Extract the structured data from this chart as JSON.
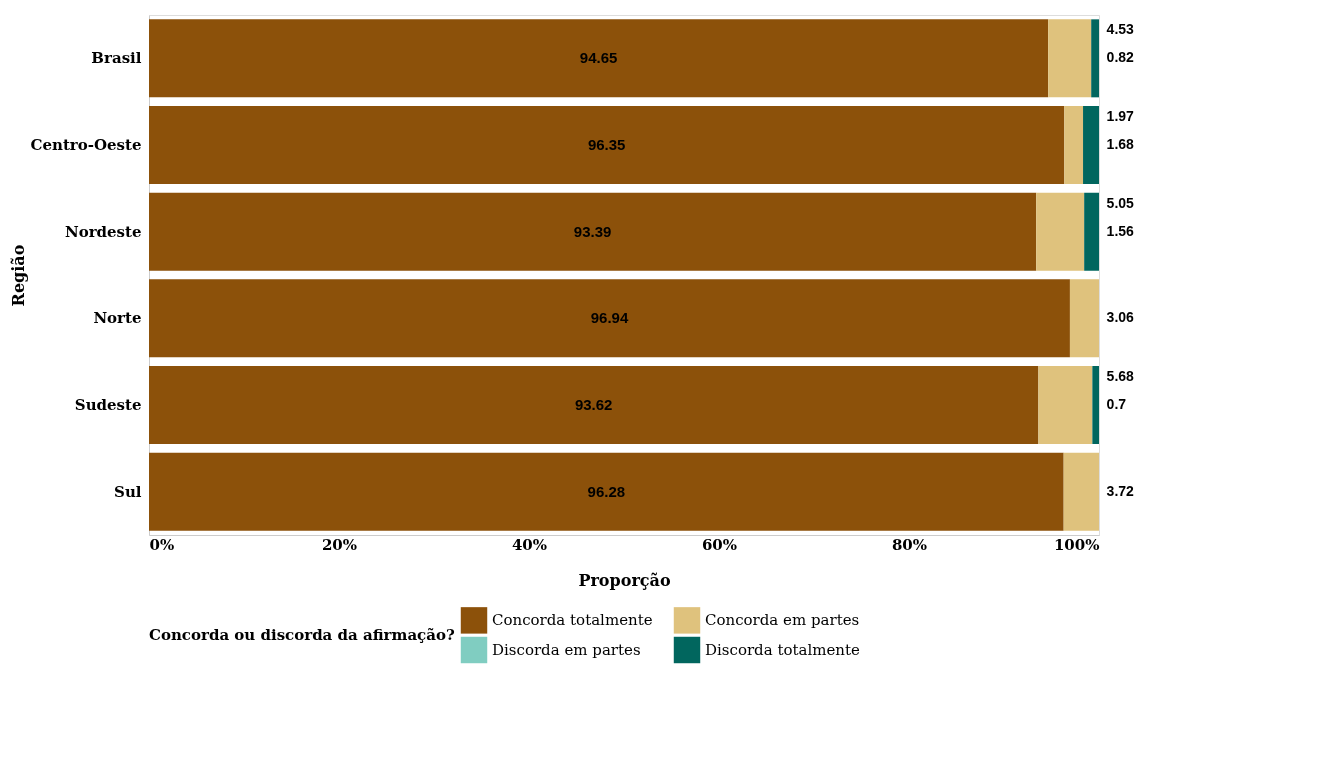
{
  "chart_data": {
    "type": "bar",
    "orientation": "horizontal",
    "stacked": true,
    "xlabel": "Proporção",
    "ylabel": "Região",
    "legend_title": "Concorda ou discorda da afirmação?",
    "legend": "bottom",
    "grid": false,
    "data_labels": true,
    "categories": [
      "Brasil",
      "Centro-Oeste",
      "Nordeste",
      "Norte",
      "Sudeste",
      "Sul"
    ],
    "xlim": [
      0,
      100
    ],
    "xticks": [
      {
        "value": 0,
        "label": "0%"
      },
      {
        "value": 20,
        "label": "20%"
      },
      {
        "value": 40,
        "label": "40%"
      },
      {
        "value": 60,
        "label": "60%"
      },
      {
        "value": 80,
        "label": "80%"
      },
      {
        "value": 100,
        "label": "100%"
      }
    ],
    "series": [
      {
        "name": "Concorda totalmente",
        "color": "#8c510a",
        "values": [
          94.65,
          96.35,
          93.39,
          96.94,
          93.62,
          96.28
        ]
      },
      {
        "name": "Concorda em partes",
        "color": "#dfc27d",
        "values": [
          4.53,
          1.97,
          5.05,
          3.06,
          5.68,
          3.72
        ]
      },
      {
        "name": "Discorda em partes",
        "color": "#80cdc1",
        "values": [
          null,
          null,
          null,
          null,
          null,
          null
        ]
      },
      {
        "name": "Discorda totalmente",
        "color": "#01665e",
        "values": [
          0.82,
          1.68,
          1.56,
          null,
          0.7,
          null
        ]
      }
    ]
  }
}
